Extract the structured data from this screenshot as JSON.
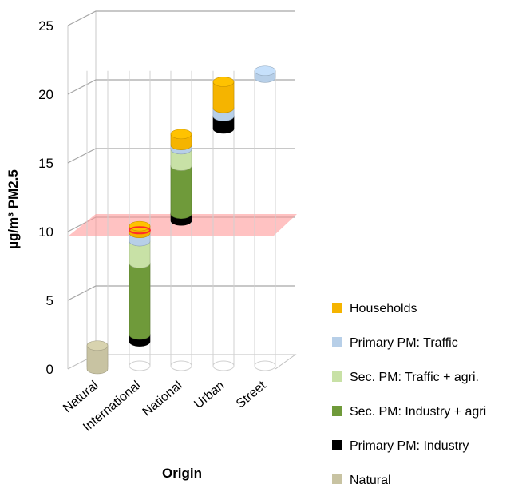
{
  "chart_data": {
    "type": "bar",
    "stacked": true,
    "three_d": true,
    "categories": [
      "Natural",
      "International",
      "National",
      "Urban",
      "Street"
    ],
    "ylabel": "µg/m³ PM2.5",
    "xlabel": "Origin",
    "ylim": [
      0,
      25
    ],
    "yticks": [
      "0",
      "5",
      "10",
      "15",
      "20",
      "25"
    ],
    "grid": true,
    "legend_position": "right",
    "threshold_band": {
      "value": 10,
      "color": "#ff9a9a"
    },
    "series": [
      {
        "name": "Natural",
        "color": "#c8c3a2",
        "segments": [
          {
            "cat": 0,
            "from": 0,
            "to": 1.7
          }
        ]
      },
      {
        "name": "Primary PM: Industry",
        "color": "#000000",
        "segments": [
          {
            "cat": 1,
            "from": 2.0,
            "to": 2.5
          },
          {
            "cat": 2,
            "from": 10.8,
            "to": 11.3
          },
          {
            "cat": 3,
            "from": 17.5,
            "to": 18.4
          }
        ]
      },
      {
        "name": "Sec. PM: Industry + agri",
        "color": "#6f9a3a",
        "segments": [
          {
            "cat": 1,
            "from": 2.5,
            "to": 7.7
          },
          {
            "cat": 2,
            "from": 11.3,
            "to": 14.8
          }
        ]
      },
      {
        "name": "Sec. PM: Traffic + agri.",
        "color": "#c8e1a6",
        "segments": [
          {
            "cat": 1,
            "from": 7.7,
            "to": 9.3
          },
          {
            "cat": 2,
            "from": 14.8,
            "to": 16.0
          }
        ]
      },
      {
        "name": "Primary PM: Traffic",
        "color": "#b7cfe8",
        "segments": [
          {
            "cat": 1,
            "from": 9.3,
            "to": 9.9
          },
          {
            "cat": 2,
            "from": 16.0,
            "to": 16.3
          },
          {
            "cat": 3,
            "from": 18.4,
            "to": 19.0
          },
          {
            "cat": 4,
            "from": 21.2,
            "to": 21.7
          }
        ]
      },
      {
        "name": "Households",
        "color": "#f5b400",
        "segments": [
          {
            "cat": 1,
            "from": 9.9,
            "to": 10.4
          },
          {
            "cat": 2,
            "from": 16.3,
            "to": 17.1
          },
          {
            "cat": 3,
            "from": 19.0,
            "to": 20.9
          }
        ]
      }
    ],
    "legend_order": [
      "Households",
      "Primary PM: Traffic",
      "Sec. PM: Traffic + agri.",
      "Sec. PM: Industry + agri",
      "Primary PM: Industry",
      "Natural"
    ],
    "outline_totals": [
      1.7,
      10.4,
      17.1,
      20.9,
      21.7
    ]
  }
}
